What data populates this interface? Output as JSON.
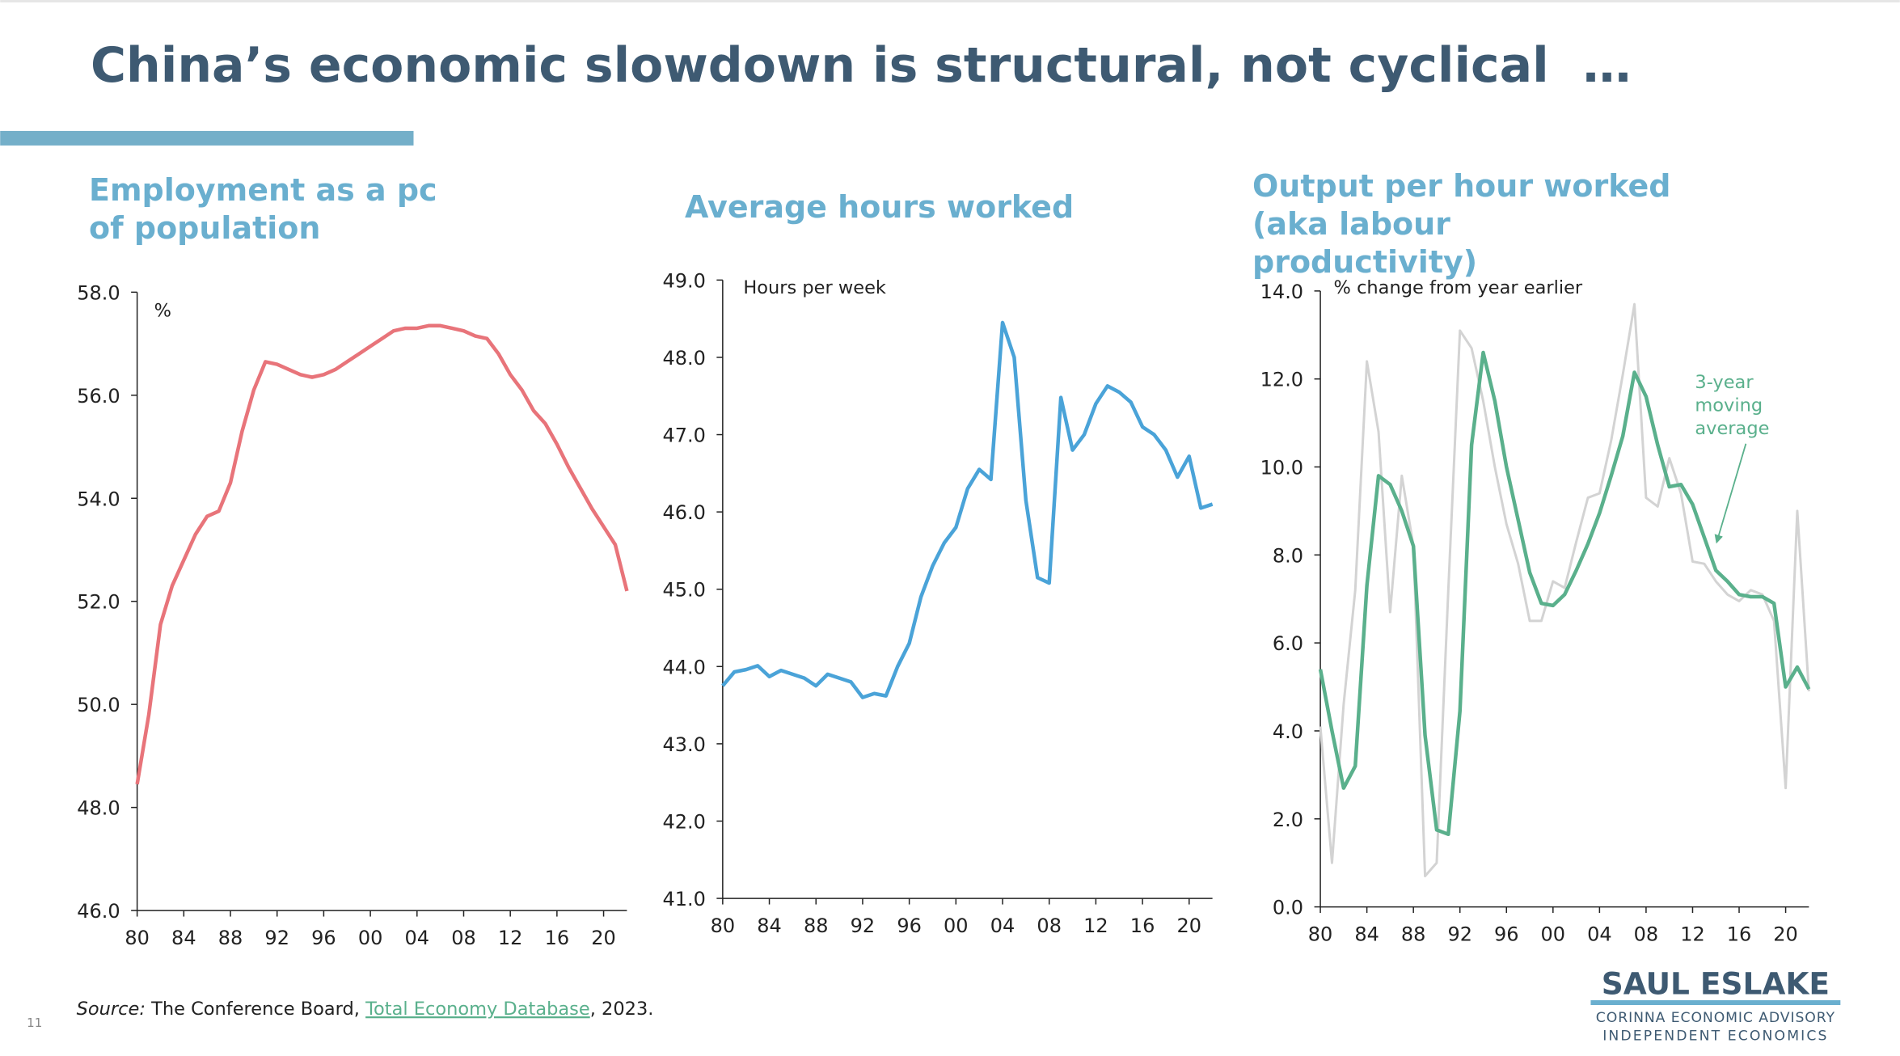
{
  "page": {
    "title": "China’s economic slowdown is structural, not cyclical  …",
    "page_number": "11",
    "source": {
      "label": "Source:",
      "text": "The Conference Board, ",
      "link": "Total Economy Database",
      "suffix": ", 2023."
    },
    "logo": {
      "name": "SAUL ESLAKE",
      "line1": "CORINNA ECONOMIC ADVISORY",
      "line2": "INDEPENDENT ECONOMICS"
    }
  },
  "chart_data": [
    {
      "type": "line",
      "title": "Employment as a pc of population",
      "y_unit_label": "%",
      "x": [
        1980,
        1981,
        1982,
        1983,
        1984,
        1985,
        1986,
        1987,
        1988,
        1989,
        1990,
        1991,
        1992,
        1993,
        1994,
        1995,
        1996,
        1997,
        1998,
        1999,
        2000,
        2001,
        2002,
        2003,
        2004,
        2005,
        2006,
        2007,
        2008,
        2009,
        2010,
        2011,
        2012,
        2013,
        2014,
        2015,
        2016,
        2017,
        2018,
        2019,
        2020,
        2021,
        2022
      ],
      "series": [
        {
          "color": "#e8747a",
          "values": [
            48.45,
            49.8,
            51.55,
            52.3,
            52.8,
            53.3,
            53.65,
            53.75,
            54.3,
            55.3,
            56.1,
            56.65,
            56.6,
            56.5,
            56.4,
            56.35,
            56.4,
            56.5,
            56.65,
            56.8,
            56.95,
            57.1,
            57.25,
            57.3,
            57.3,
            57.35,
            57.35,
            57.3,
            57.25,
            57.15,
            57.1,
            56.8,
            56.4,
            56.1,
            55.7,
            55.45,
            55.05,
            54.6,
            54.2,
            53.8,
            53.45,
            53.1,
            52.2
          ]
        }
      ],
      "xlim": [
        1980,
        2022
      ],
      "xticks": [
        {
          "value": 1980,
          "label": "80"
        },
        {
          "value": 1984,
          "label": "84"
        },
        {
          "value": 1988,
          "label": "88"
        },
        {
          "value": 1992,
          "label": "92"
        },
        {
          "value": 1996,
          "label": "96"
        },
        {
          "value": 2000,
          "label": "00"
        },
        {
          "value": 2004,
          "label": "04"
        },
        {
          "value": 2008,
          "label": "08"
        },
        {
          "value": 2012,
          "label": "12"
        },
        {
          "value": 2016,
          "label": "16"
        },
        {
          "value": 2020,
          "label": "20"
        }
      ],
      "ylim": [
        46,
        58
      ],
      "yticks": [
        {
          "value": 46,
          "label": "46.0"
        },
        {
          "value": 48,
          "label": "48.0"
        },
        {
          "value": 50,
          "label": "50.0"
        },
        {
          "value": 52,
          "label": "52.0"
        },
        {
          "value": 54,
          "label": "54.0"
        },
        {
          "value": 56,
          "label": "56.0"
        },
        {
          "value": 58,
          "label": "58.0"
        }
      ]
    },
    {
      "type": "line",
      "title": "Average hours worked",
      "y_unit_label": "Hours per week",
      "x": [
        1980,
        1981,
        1982,
        1983,
        1984,
        1985,
        1986,
        1987,
        1988,
        1989,
        1990,
        1991,
        1992,
        1993,
        1994,
        1995,
        1996,
        1997,
        1998,
        1999,
        2000,
        2001,
        2002,
        2003,
        2004,
        2005,
        2006,
        2007,
        2008,
        2009,
        2010,
        2011,
        2012,
        2013,
        2014,
        2015,
        2016,
        2017,
        2018,
        2019,
        2020,
        2021,
        2022
      ],
      "series": [
        {
          "color": "#4aa3d8",
          "values": [
            43.75,
            43.93,
            43.96,
            44.01,
            43.87,
            43.95,
            43.9,
            43.85,
            43.75,
            43.9,
            43.85,
            43.8,
            43.6,
            43.65,
            43.62,
            44.0,
            44.3,
            44.9,
            45.3,
            45.6,
            45.8,
            46.3,
            46.55,
            46.42,
            48.45,
            48.0,
            46.15,
            45.15,
            45.08,
            47.48,
            46.8,
            47.0,
            47.4,
            47.63,
            47.55,
            47.42,
            47.1,
            47.0,
            46.8,
            46.45,
            46.72,
            46.05,
            46.1
          ]
        }
      ],
      "xlim": [
        1980,
        2022
      ],
      "xticks": [
        {
          "value": 1980,
          "label": "80"
        },
        {
          "value": 1984,
          "label": "84"
        },
        {
          "value": 1988,
          "label": "88"
        },
        {
          "value": 1992,
          "label": "92"
        },
        {
          "value": 1996,
          "label": "96"
        },
        {
          "value": 2000,
          "label": "00"
        },
        {
          "value": 2004,
          "label": "04"
        },
        {
          "value": 2008,
          "label": "08"
        },
        {
          "value": 2012,
          "label": "12"
        },
        {
          "value": 2016,
          "label": "16"
        },
        {
          "value": 2020,
          "label": "20"
        }
      ],
      "ylim": [
        41,
        49
      ],
      "yticks": [
        {
          "value": 41,
          "label": "41.0"
        },
        {
          "value": 42,
          "label": "42.0"
        },
        {
          "value": 43,
          "label": "43.0"
        },
        {
          "value": 44,
          "label": "44.0"
        },
        {
          "value": 45,
          "label": "45.0"
        },
        {
          "value": 46,
          "label": "46.0"
        },
        {
          "value": 47,
          "label": "47.0"
        },
        {
          "value": 48,
          "label": "48.0"
        },
        {
          "value": 49,
          "label": "49.0"
        }
      ]
    },
    {
      "type": "line",
      "title": "Output per hour worked (aka labour productivity)",
      "y_unit_label": "% change from year earlier",
      "annotation": [
        "3-year",
        "moving",
        "average"
      ],
      "x": [
        1980,
        1981,
        1982,
        1983,
        1984,
        1985,
        1986,
        1987,
        1988,
        1989,
        1990,
        1991,
        1992,
        1993,
        1994,
        1995,
        1996,
        1997,
        1998,
        1999,
        2000,
        2001,
        2002,
        2003,
        2004,
        2005,
        2006,
        2007,
        2008,
        2009,
        2010,
        2011,
        2012,
        2013,
        2014,
        2015,
        2016,
        2017,
        2018,
        2019,
        2020,
        2021,
        2022
      ],
      "series": [
        {
          "color": "#d3d3d3",
          "values": [
            4.1,
            1.0,
            4.6,
            7.2,
            12.4,
            10.8,
            6.7,
            9.8,
            8.2,
            0.7,
            1.0,
            7.2,
            13.1,
            12.7,
            11.5,
            10.0,
            8.7,
            7.8,
            6.5,
            6.5,
            7.4,
            7.25,
            8.3,
            9.3,
            9.4,
            10.6,
            12.1,
            13.7,
            9.3,
            9.1,
            10.2,
            9.4,
            7.85,
            7.8,
            7.4,
            7.1,
            6.95,
            7.2,
            7.1,
            6.5,
            2.7,
            9.0,
            4.9
          ]
        },
        {
          "color": "#5ab08c",
          "values": [
            5.4,
            4.0,
            2.7,
            3.2,
            7.3,
            9.8,
            9.6,
            9.0,
            8.2,
            3.9,
            1.75,
            1.65,
            4.45,
            10.5,
            12.6,
            11.5,
            10.0,
            8.8,
            7.6,
            6.9,
            6.85,
            7.1,
            7.65,
            8.25,
            8.95,
            9.8,
            10.7,
            12.15,
            11.6,
            10.5,
            9.55,
            9.6,
            9.15,
            8.4,
            7.65,
            7.4,
            7.1,
            7.05,
            7.05,
            6.9,
            5.0,
            5.45,
            4.95
          ]
        }
      ],
      "xlim": [
        1980,
        2022
      ],
      "xticks": [
        {
          "value": 1980,
          "label": "80"
        },
        {
          "value": 1984,
          "label": "84"
        },
        {
          "value": 1988,
          "label": "88"
        },
        {
          "value": 1992,
          "label": "92"
        },
        {
          "value": 1996,
          "label": "96"
        },
        {
          "value": 2000,
          "label": "00"
        },
        {
          "value": 2004,
          "label": "04"
        },
        {
          "value": 2008,
          "label": "08"
        },
        {
          "value": 2012,
          "label": "12"
        },
        {
          "value": 2016,
          "label": "16"
        },
        {
          "value": 2020,
          "label": "20"
        }
      ],
      "ylim": [
        0,
        14
      ],
      "yticks": [
        {
          "value": 0,
          "label": "0.0"
        },
        {
          "value": 2,
          "label": "2.0"
        },
        {
          "value": 4,
          "label": "4.0"
        },
        {
          "value": 6,
          "label": "6.0"
        },
        {
          "value": 8,
          "label": "8.0"
        },
        {
          "value": 10,
          "label": "10.0"
        },
        {
          "value": 12,
          "label": "12.0"
        },
        {
          "value": 14,
          "label": "14.0"
        }
      ]
    }
  ]
}
